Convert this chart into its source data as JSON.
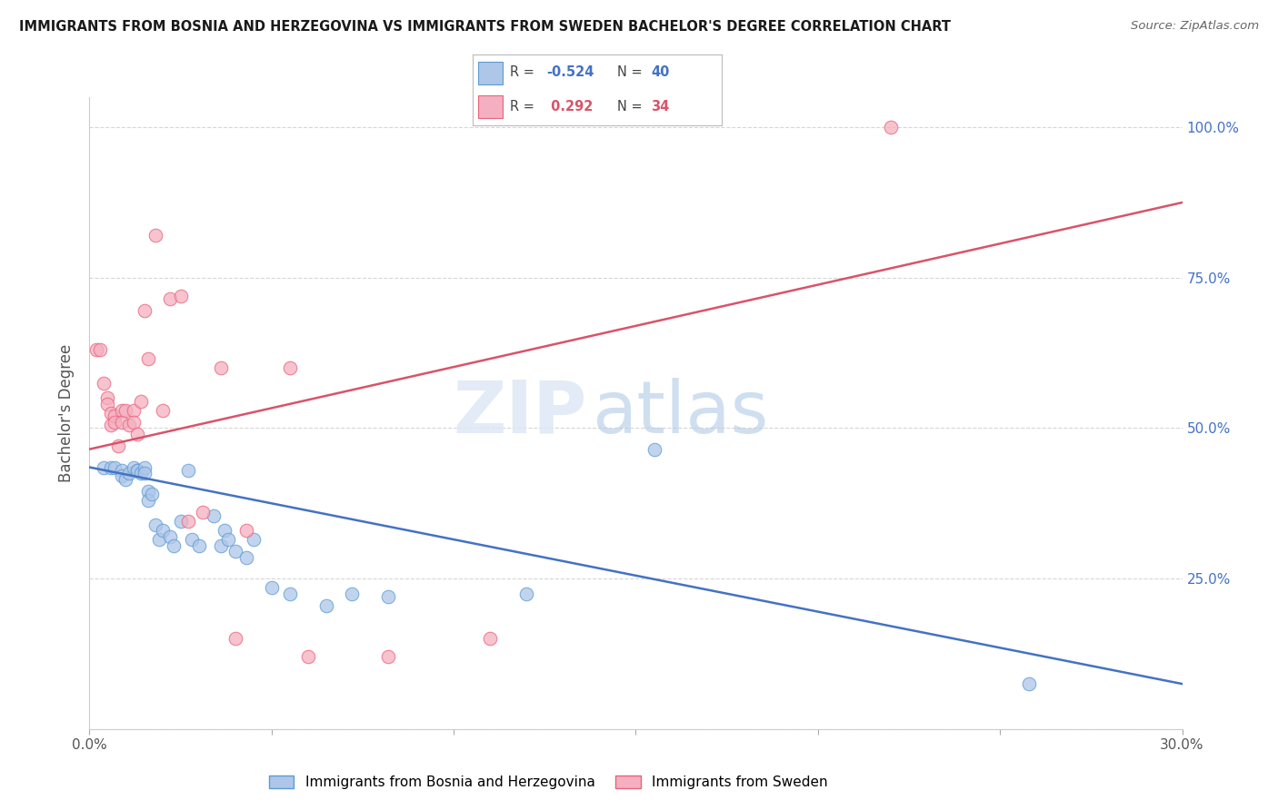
{
  "title": "IMMIGRANTS FROM BOSNIA AND HERZEGOVINA VS IMMIGRANTS FROM SWEDEN BACHELOR'S DEGREE CORRELATION CHART",
  "source": "Source: ZipAtlas.com",
  "ylabel": "Bachelor's Degree",
  "watermark_zip": "ZIP",
  "watermark_atlas": "atlas",
  "xlim": [
    0.0,
    0.3
  ],
  "ylim": [
    0.0,
    1.05
  ],
  "xticks": [
    0.0,
    0.05,
    0.1,
    0.15,
    0.2,
    0.25,
    0.3
  ],
  "xticklabels": [
    "0.0%",
    "",
    "",
    "",
    "",
    "",
    "30.0%"
  ],
  "yticks": [
    0.0,
    0.25,
    0.5,
    0.75,
    1.0
  ],
  "right_yticklabels": [
    "",
    "25.0%",
    "50.0%",
    "75.0%",
    "100.0%"
  ],
  "blue_R": "-0.524",
  "blue_N": "40",
  "pink_R": "0.292",
  "pink_N": "34",
  "blue_color": "#aec6e8",
  "pink_color": "#f4afc0",
  "blue_edge_color": "#5b9bd5",
  "pink_edge_color": "#e8637c",
  "blue_line_color": "#4472c4",
  "pink_line_color": "#d9536a",
  "right_axis_color": "#4472c4",
  "grid_color": "#cccccc",
  "background_color": "#ffffff",
  "blue_points": [
    [
      0.004,
      0.435
    ],
    [
      0.006,
      0.435
    ],
    [
      0.007,
      0.435
    ],
    [
      0.009,
      0.43
    ],
    [
      0.009,
      0.42
    ],
    [
      0.01,
      0.415
    ],
    [
      0.011,
      0.425
    ],
    [
      0.012,
      0.435
    ],
    [
      0.013,
      0.43
    ],
    [
      0.013,
      0.43
    ],
    [
      0.014,
      0.425
    ],
    [
      0.015,
      0.435
    ],
    [
      0.015,
      0.425
    ],
    [
      0.016,
      0.395
    ],
    [
      0.016,
      0.38
    ],
    [
      0.017,
      0.39
    ],
    [
      0.018,
      0.34
    ],
    [
      0.019,
      0.315
    ],
    [
      0.02,
      0.33
    ],
    [
      0.022,
      0.32
    ],
    [
      0.023,
      0.305
    ],
    [
      0.025,
      0.345
    ],
    [
      0.027,
      0.43
    ],
    [
      0.028,
      0.315
    ],
    [
      0.03,
      0.305
    ],
    [
      0.034,
      0.355
    ],
    [
      0.036,
      0.305
    ],
    [
      0.037,
      0.33
    ],
    [
      0.038,
      0.315
    ],
    [
      0.04,
      0.295
    ],
    [
      0.043,
      0.285
    ],
    [
      0.045,
      0.315
    ],
    [
      0.05,
      0.235
    ],
    [
      0.055,
      0.225
    ],
    [
      0.065,
      0.205
    ],
    [
      0.072,
      0.225
    ],
    [
      0.082,
      0.22
    ],
    [
      0.12,
      0.225
    ],
    [
      0.155,
      0.465
    ],
    [
      0.258,
      0.075
    ]
  ],
  "pink_points": [
    [
      0.002,
      0.63
    ],
    [
      0.003,
      0.63
    ],
    [
      0.004,
      0.575
    ],
    [
      0.005,
      0.55
    ],
    [
      0.005,
      0.54
    ],
    [
      0.006,
      0.525
    ],
    [
      0.006,
      0.505
    ],
    [
      0.007,
      0.52
    ],
    [
      0.007,
      0.51
    ],
    [
      0.008,
      0.47
    ],
    [
      0.009,
      0.53
    ],
    [
      0.009,
      0.51
    ],
    [
      0.01,
      0.53
    ],
    [
      0.011,
      0.505
    ],
    [
      0.012,
      0.53
    ],
    [
      0.012,
      0.51
    ],
    [
      0.013,
      0.49
    ],
    [
      0.014,
      0.545
    ],
    [
      0.015,
      0.695
    ],
    [
      0.016,
      0.615
    ],
    [
      0.018,
      0.82
    ],
    [
      0.02,
      0.53
    ],
    [
      0.022,
      0.715
    ],
    [
      0.025,
      0.72
    ],
    [
      0.027,
      0.345
    ],
    [
      0.031,
      0.36
    ],
    [
      0.036,
      0.6
    ],
    [
      0.04,
      0.15
    ],
    [
      0.043,
      0.33
    ],
    [
      0.055,
      0.6
    ],
    [
      0.06,
      0.12
    ],
    [
      0.082,
      0.12
    ],
    [
      0.11,
      0.15
    ],
    [
      0.22,
      1.0
    ]
  ],
  "blue_line_x": [
    0.0,
    0.3
  ],
  "blue_line_y": [
    0.435,
    0.075
  ],
  "pink_line_x": [
    0.0,
    0.3
  ],
  "pink_line_y": [
    0.465,
    0.875
  ]
}
